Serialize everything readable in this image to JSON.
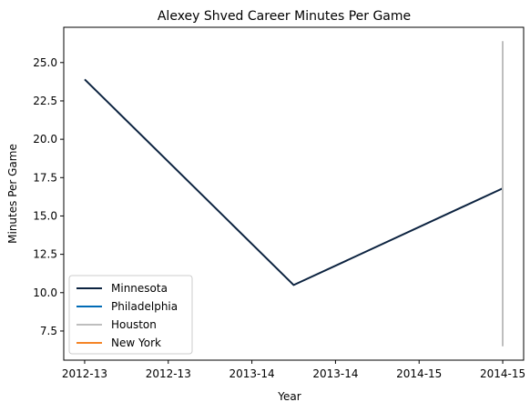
{
  "chart_data": {
    "type": "line",
    "title": "Alexey Shved Career Minutes Per Game",
    "xlabel": "Year",
    "ylabel": "Minutes Per Game",
    "x_tick_labels": [
      "2012-13",
      "2012-13",
      "2013-14",
      "2013-14",
      "2014-15",
      "2014-15"
    ],
    "y_ticks": [
      7.5,
      10.0,
      12.5,
      15.0,
      17.5,
      20.0,
      22.5,
      25.0
    ],
    "y_tick_labels": [
      "7.5",
      "10.0",
      "12.5",
      "15.0",
      "17.5",
      "20.0",
      "22.5",
      "25.0"
    ],
    "xlim": [
      -0.1,
      2.1
    ],
    "ylim": [
      5.6,
      27.3
    ],
    "grid": false,
    "legend_position": "lower-left",
    "series": [
      {
        "name": "Minnesota",
        "color": "#0C2340",
        "points": [
          [
            0,
            23.9
          ],
          [
            1,
            10.5
          ],
          [
            2,
            16.8
          ]
        ]
      },
      {
        "name": "Philadelphia",
        "color": "#006BB6",
        "points": [
          [
            2,
            16.8
          ]
        ]
      },
      {
        "name": "Houston",
        "color": "#BEBEBE",
        "points": [
          [
            2,
            26.4
          ],
          [
            2,
            6.5
          ]
        ]
      },
      {
        "name": "New York",
        "color": "#F58426",
        "points": [
          [
            2,
            16.8
          ]
        ]
      }
    ]
  }
}
